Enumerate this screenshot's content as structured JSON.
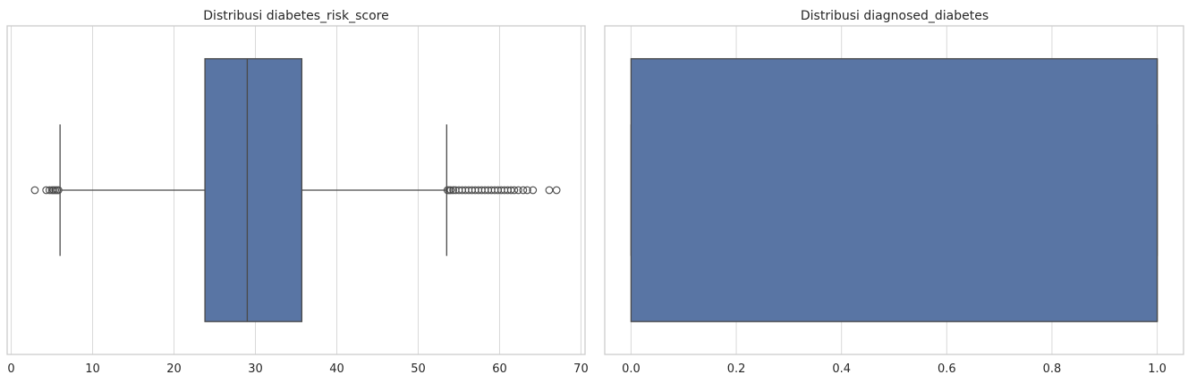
{
  "chart_data": [
    {
      "type": "boxplot",
      "title": "Distribusi diabetes_risk_score",
      "xlabel": "",
      "ylabel": "",
      "xlim": [
        -0.5,
        70.5
      ],
      "xticks": [
        0,
        10,
        20,
        30,
        40,
        50,
        60,
        70
      ],
      "tick_labels": [
        "0",
        "10",
        "20",
        "30",
        "40",
        "50",
        "60",
        "70"
      ],
      "grid": true,
      "box": {
        "whisker_low": 6.0,
        "q1": 23.8,
        "median": 29.0,
        "q3": 35.7,
        "whisker_high": 53.5
      },
      "outliers": [
        2.9,
        4.3,
        4.7,
        5.0,
        5.2,
        5.4,
        5.6,
        5.8,
        53.6,
        53.8,
        54.0,
        54.3,
        54.6,
        55.0,
        55.4,
        55.8,
        56.2,
        56.6,
        57.0,
        57.4,
        57.8,
        58.2,
        58.6,
        59.0,
        59.4,
        59.8,
        60.2,
        60.6,
        61.0,
        61.4,
        61.8,
        62.3,
        62.9,
        63.4,
        64.1,
        66.1,
        67.0
      ],
      "box_color": "#5975a4"
    },
    {
      "type": "boxplot",
      "title": "Distribusi diagnosed_diabetes",
      "xlabel": "",
      "ylabel": "",
      "xlim": [
        -0.05,
        1.05
      ],
      "xticks": [
        0.0,
        0.2,
        0.4,
        0.6,
        0.8,
        1.0
      ],
      "tick_labels": [
        "0.0",
        "0.2",
        "0.4",
        "0.6",
        "0.8",
        "1.0"
      ],
      "grid": true,
      "box": {
        "whisker_low": 0.0,
        "q1": 0.0,
        "median": 1.0,
        "q3": 1.0,
        "whisker_high": 1.0
      },
      "outliers": [],
      "box_color": "#5975a4"
    }
  ]
}
